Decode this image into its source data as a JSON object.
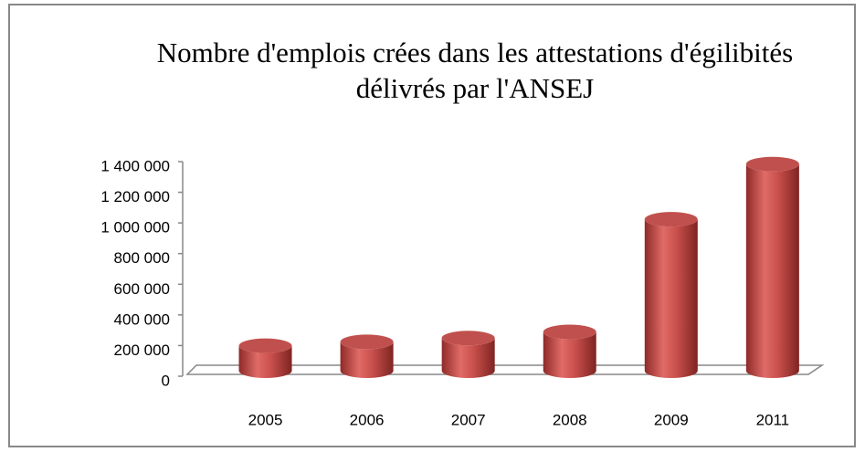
{
  "chart_data": {
    "type": "bar",
    "title": "Nombre d'emplois crées dans les attestations d'égilibités délivrés par l'ANSEJ",
    "categories": [
      "2005",
      "2006",
      "2007",
      "2008",
      "2009",
      "2011"
    ],
    "values": [
      175000,
      200000,
      225000,
      265000,
      1000000,
      1360000
    ],
    "color": "#c0504d",
    "ylim": [
      0,
      1400000
    ],
    "yticks": [
      0,
      {
        "value": 200000,
        "label": "200 000"
      },
      {
        "value": 400000,
        "label": "400 000"
      },
      {
        "value": 600000,
        "label": "600 000"
      },
      {
        "value": 800000,
        "label": "800 000"
      },
      {
        "value": 1000000,
        "label": "1 000 000"
      },
      {
        "value": 1200000,
        "label": "1 200 000"
      },
      {
        "value": 1400000,
        "label": "1 400 000"
      }
    ]
  }
}
